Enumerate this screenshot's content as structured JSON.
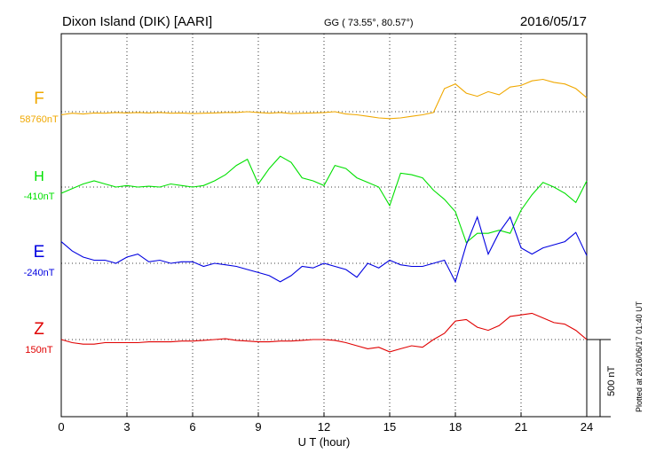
{
  "header": {
    "station": "Dixon Island (DIK)  [AARI]",
    "coords": "GG ( 73.55°,  80.57°)",
    "date": "2016/05/17"
  },
  "plotted_note": "Plotted at 2016/06/17 01:40 UT",
  "chart_data": {
    "type": "line",
    "xlabel": "U T (hour)",
    "xlim": [
      0,
      24
    ],
    "xticks": [
      0,
      3,
      6,
      9,
      12,
      15,
      18,
      21,
      24
    ],
    "scale_bar_label": "500 nT",
    "series": [
      {
        "name": "F",
        "baseline": "58760nT",
        "color": "#f0a800",
        "x": [
          0,
          0.5,
          1,
          1.5,
          2,
          2.5,
          3,
          3.5,
          4,
          4.5,
          5,
          5.5,
          6,
          6.5,
          7,
          7.5,
          8,
          8.5,
          9,
          9.5,
          10,
          10.5,
          11,
          11.5,
          12,
          12.5,
          13,
          13.5,
          14,
          14.5,
          15,
          15.5,
          16,
          16.5,
          17,
          17.5,
          18,
          18.5,
          19,
          19.5,
          20,
          20.5,
          21,
          21.5,
          22,
          22.5,
          23,
          23.5,
          24
        ],
        "y": [
          -20,
          -10,
          -15,
          -8,
          -10,
          -5,
          -8,
          -5,
          -8,
          -5,
          -10,
          -8,
          -12,
          -10,
          -8,
          -5,
          -5,
          0,
          -5,
          -10,
          -5,
          -12,
          -10,
          -8,
          -5,
          0,
          -15,
          -20,
          -30,
          -40,
          -45,
          -40,
          -30,
          -20,
          -5,
          150,
          180,
          120,
          100,
          130,
          110,
          160,
          170,
          200,
          210,
          190,
          180,
          150,
          90
        ]
      },
      {
        "name": "H",
        "baseline": "-410nT",
        "color": "#00e000",
        "x": [
          0,
          0.5,
          1,
          1.5,
          2,
          2.5,
          3,
          3.5,
          4,
          4.5,
          5,
          5.5,
          6,
          6.5,
          7,
          7.5,
          8,
          8.5,
          9,
          9.5,
          10,
          10.5,
          11,
          11.5,
          12,
          12.5,
          13,
          13.5,
          14,
          14.5,
          15,
          15.5,
          16,
          16.5,
          17,
          17.5,
          18,
          18.5,
          19,
          19.5,
          20,
          20.5,
          21,
          21.5,
          22,
          22.5,
          23,
          23.5,
          24
        ],
        "y": [
          -40,
          -10,
          20,
          40,
          20,
          0,
          10,
          0,
          5,
          0,
          20,
          10,
          0,
          10,
          40,
          80,
          140,
          180,
          20,
          120,
          200,
          160,
          60,
          40,
          10,
          140,
          120,
          60,
          30,
          0,
          -120,
          90,
          80,
          60,
          -20,
          -80,
          -160,
          -360,
          -300,
          -300,
          -280,
          -300,
          -150,
          -50,
          30,
          0,
          -40,
          -100,
          40
        ]
      },
      {
        "name": "E",
        "baseline": "-240nT",
        "color": "#0000e0",
        "x": [
          0,
          0.5,
          1,
          1.5,
          2,
          2.5,
          3,
          3.5,
          4,
          4.5,
          5,
          5.5,
          6,
          6.5,
          7,
          7.5,
          8,
          8.5,
          9,
          9.5,
          10,
          10.5,
          11,
          11.5,
          12,
          12.5,
          13,
          13.5,
          14,
          14.5,
          15,
          15.5,
          16,
          16.5,
          17,
          17.5,
          18,
          18.5,
          19,
          19.5,
          20,
          20.5,
          21,
          21.5,
          22,
          22.5,
          23,
          23.5,
          24
        ],
        "y": [
          140,
          80,
          40,
          20,
          20,
          0,
          40,
          60,
          10,
          20,
          0,
          10,
          10,
          -20,
          0,
          -10,
          -20,
          -40,
          -60,
          -80,
          -120,
          -80,
          -20,
          -30,
          0,
          -20,
          -40,
          -90,
          0,
          -30,
          20,
          -10,
          -20,
          -20,
          0,
          20,
          -120,
          120,
          300,
          60,
          200,
          300,
          100,
          60,
          100,
          120,
          140,
          200,
          50
        ]
      },
      {
        "name": "Z",
        "baseline": "150nT",
        "color": "#e00000",
        "x": [
          0,
          0.5,
          1,
          1.5,
          2,
          2.5,
          3,
          3.5,
          4,
          4.5,
          5,
          5.5,
          6,
          6.5,
          7,
          7.5,
          8,
          8.5,
          9,
          9.5,
          10,
          10.5,
          11,
          11.5,
          12,
          12.5,
          13,
          13.5,
          14,
          14.5,
          15,
          15.5,
          16,
          16.5,
          17,
          17.5,
          18,
          18.5,
          19,
          19.5,
          20,
          20.5,
          21,
          21.5,
          22,
          22.5,
          23,
          23.5,
          24
        ],
        "y": [
          0,
          -20,
          -30,
          -30,
          -20,
          -20,
          -20,
          -20,
          -15,
          -15,
          -15,
          -10,
          -10,
          -5,
          0,
          5,
          -5,
          -10,
          -15,
          -15,
          -10,
          -10,
          -5,
          0,
          0,
          -5,
          -20,
          -40,
          -60,
          -50,
          -80,
          -60,
          -40,
          -50,
          0,
          40,
          120,
          130,
          80,
          60,
          90,
          150,
          160,
          170,
          140,
          110,
          100,
          60,
          0
        ]
      }
    ]
  }
}
